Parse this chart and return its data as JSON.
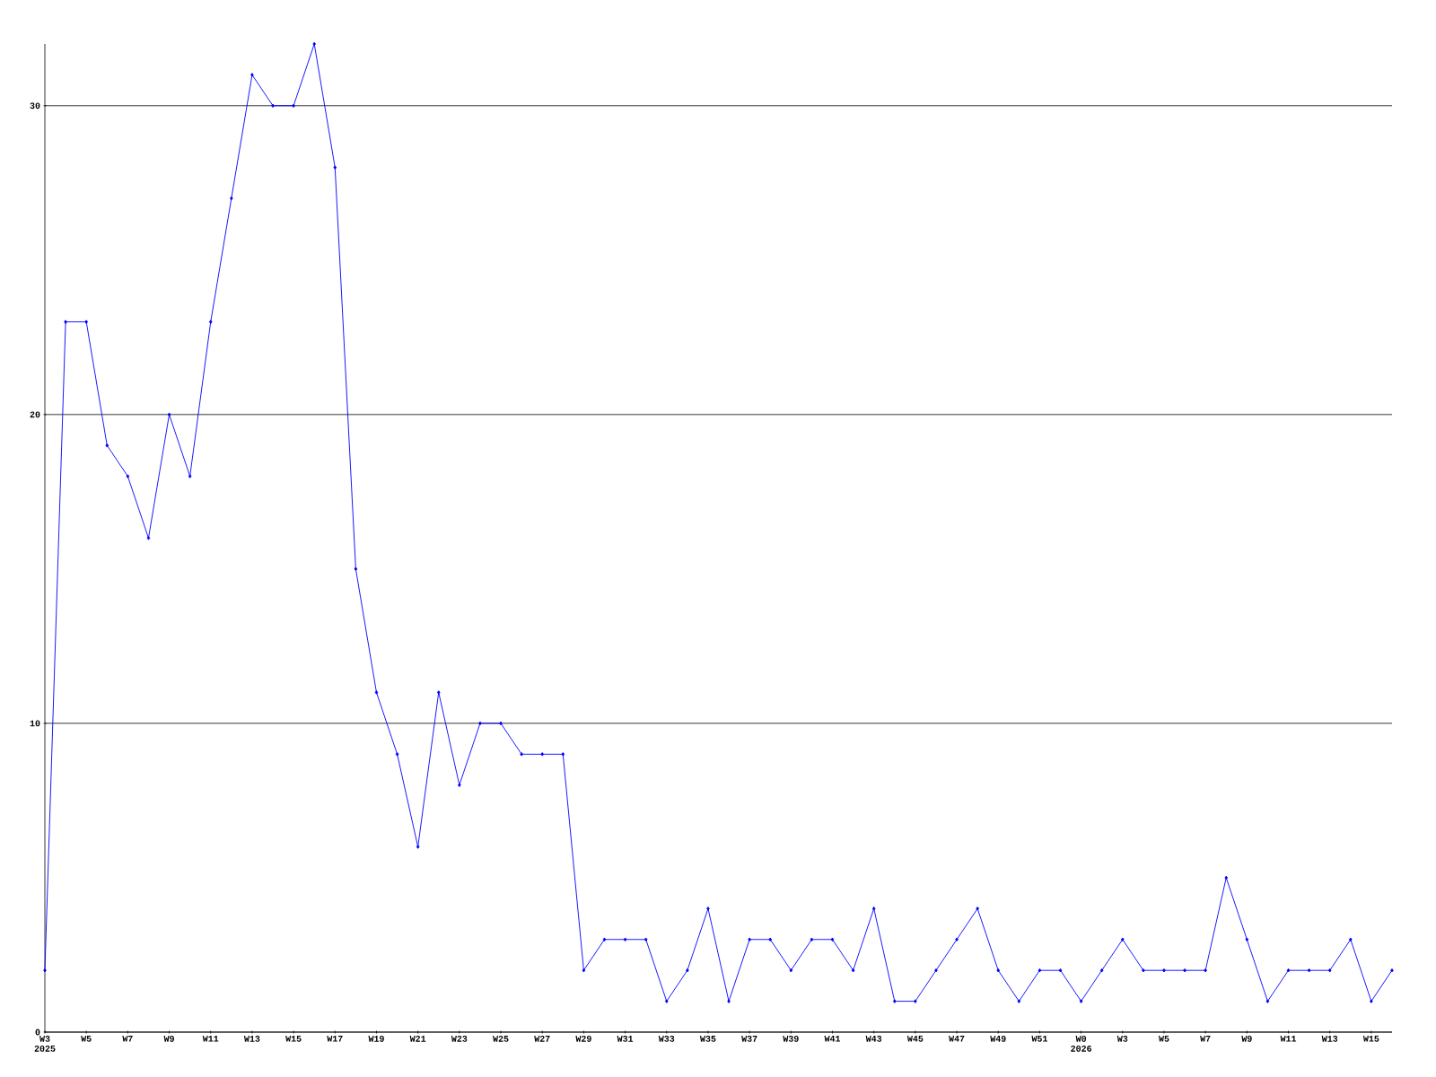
{
  "chart_data": {
    "type": "line",
    "color": "#0000ff",
    "marker": "diamond",
    "grid": "y",
    "categories": [
      "W3 2025",
      null,
      "W5",
      null,
      "W7",
      null,
      "W9",
      null,
      "W11",
      null,
      "W13",
      null,
      "W15",
      null,
      "W17",
      null,
      "W19",
      null,
      "W21",
      null,
      "W23",
      null,
      "W25",
      null,
      "W27",
      null,
      "W29",
      null,
      "W31",
      null,
      "W33",
      null,
      "W35",
      null,
      "W37",
      null,
      "W39",
      null,
      "W41",
      null,
      "W43",
      null,
      "W45",
      null,
      "W47",
      null,
      "W49",
      null,
      "W51",
      null,
      "W0 2026",
      null,
      "W3",
      null,
      "W5",
      null,
      "W7",
      null,
      "W9",
      null,
      "W11",
      null,
      "W13",
      null,
      "W15",
      null
    ],
    "values": [
      2,
      23,
      23,
      19,
      18,
      16,
      20,
      18,
      23,
      27,
      31,
      30,
      30,
      32,
      28,
      15,
      11,
      9,
      6,
      11,
      8,
      10,
      10,
      9,
      9,
      9,
      2,
      3,
      3,
      3,
      1,
      2,
      4,
      1,
      3,
      3,
      2,
      3,
      3,
      2,
      4,
      1,
      1,
      2,
      3,
      4,
      2,
      1,
      2,
      2,
      1,
      2,
      3,
      2,
      2,
      2,
      2,
      5,
      3,
      1,
      2,
      2,
      2,
      3,
      1,
      2
    ],
    "ylim": [
      0,
      32
    ],
    "yticks": [
      0,
      10,
      20,
      30
    ]
  }
}
